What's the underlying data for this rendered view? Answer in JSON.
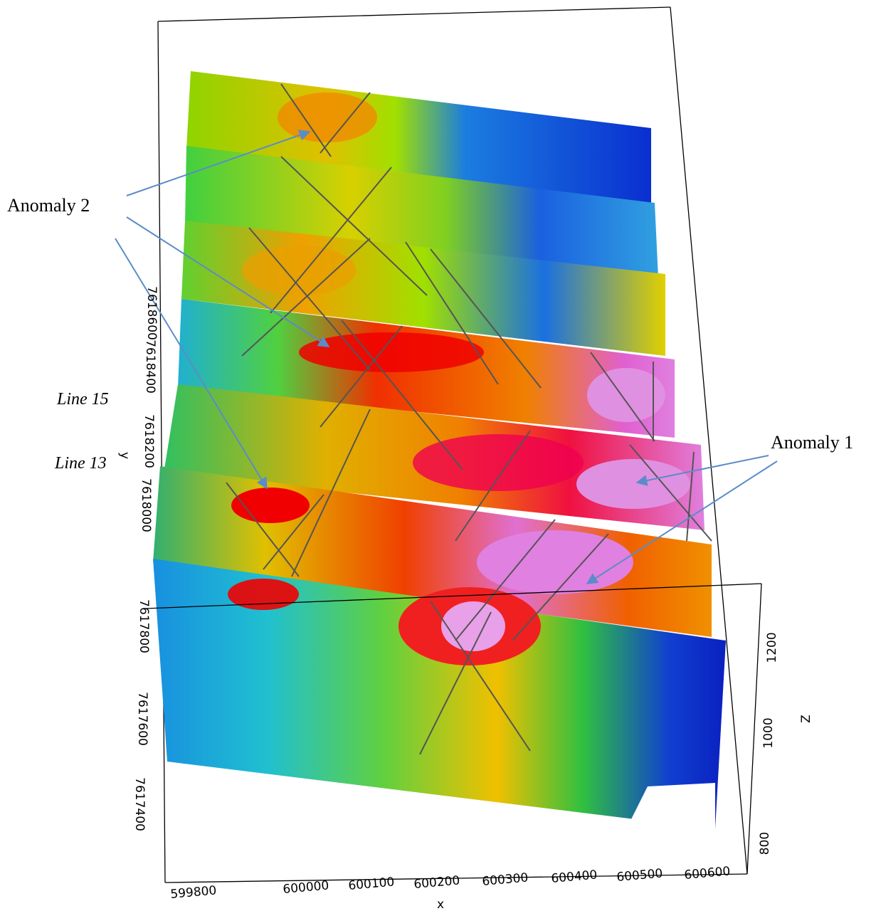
{
  "annotations": {
    "anomaly_2": "Anomaly 2",
    "anomaly_1": "Anomaly 1",
    "line_15": "Line 15",
    "line_13": "Line 13"
  },
  "x_axis": {
    "label": "x",
    "ticks": [
      "599800",
      "600000",
      "600100",
      "600200",
      "600300",
      "600400",
      "600500",
      "600600"
    ]
  },
  "y_axis": {
    "label": "y",
    "ticks": [
      "7617400",
      "7617600",
      "7617800",
      "7618000",
      "7618200",
      "7618400",
      "7618600"
    ]
  },
  "z_axis": {
    "label": "Z",
    "ticks": [
      "800",
      "1000",
      "1200"
    ]
  }
}
